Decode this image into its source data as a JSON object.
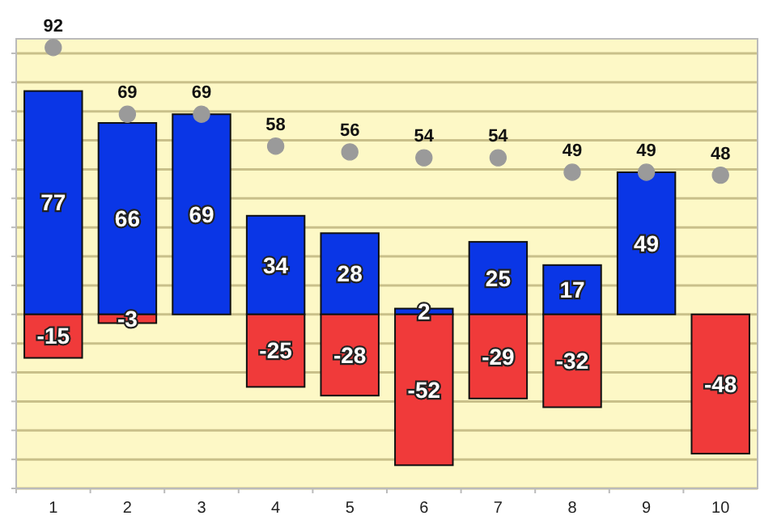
{
  "chart_data": {
    "type": "bar",
    "stacked": true,
    "data_labels": true,
    "grid": "y",
    "tick_labels": "x",
    "marker": "circle",
    "categories": [
      "1",
      "2",
      "3",
      "4",
      "5",
      "6",
      "7",
      "8",
      "9",
      "10"
    ],
    "ylim": [
      -60,
      95
    ],
    "yticks": [
      {
        "value": -60,
        "label": null
      },
      {
        "value": -50,
        "label": null
      },
      {
        "value": -40,
        "label": null
      },
      {
        "value": -30,
        "label": null
      },
      {
        "value": -20,
        "label": null
      },
      {
        "value": -10,
        "label": null
      },
      {
        "value": 0,
        "label": null
      },
      {
        "value": 10,
        "label": null
      },
      {
        "value": 20,
        "label": null
      },
      {
        "value": 30,
        "label": null
      },
      {
        "value": 40,
        "label": null
      },
      {
        "value": 50,
        "label": null
      },
      {
        "value": 60,
        "label": null
      },
      {
        "value": 70,
        "label": null
      },
      {
        "value": 80,
        "label": null
      },
      {
        "value": 90,
        "label": null
      }
    ],
    "series": [
      {
        "color": "#0a36e6",
        "values": [
          77,
          66,
          69,
          34,
          28,
          2,
          25,
          17,
          49,
          null
        ]
      },
      {
        "color": "#f03a3a",
        "values": [
          -15,
          -3,
          null,
          -25,
          -28,
          -52,
          -29,
          -32,
          null,
          -48
        ]
      },
      {
        "type": "scatter",
        "color": "#9a9a9a",
        "x": [
          "1",
          "2",
          "3",
          "4",
          "5",
          "6",
          "7",
          "8",
          "9",
          "10"
        ],
        "values": [
          92,
          69,
          69,
          58,
          56,
          54,
          54,
          49,
          49,
          48
        ]
      }
    ]
  }
}
